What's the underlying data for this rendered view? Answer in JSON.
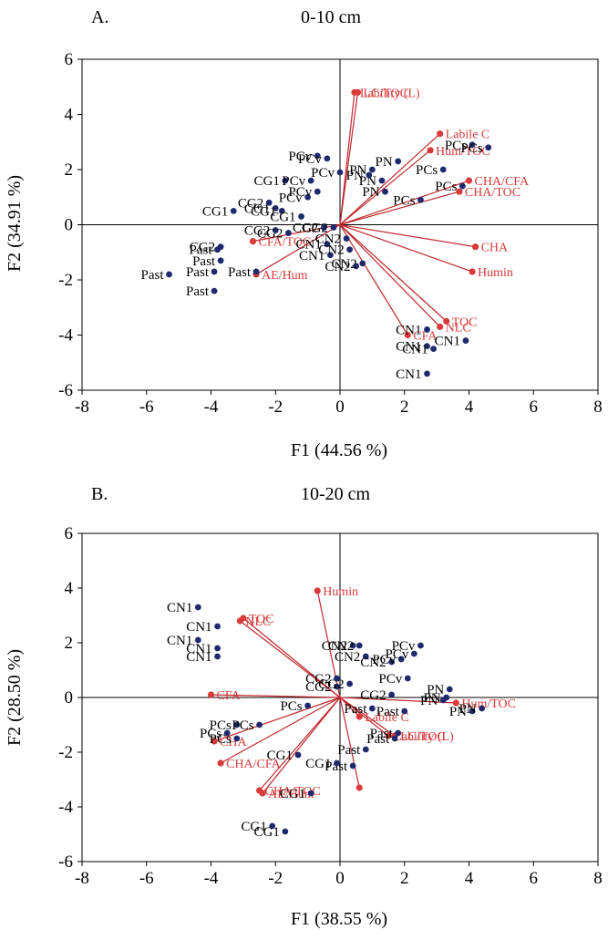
{
  "chart_data": [
    {
      "type": "scatter",
      "panel_label": "A.",
      "title": "0-10 cm",
      "xlabel": "F1 (44.56 %)",
      "ylabel": "F2 (34.91 %)",
      "xlim": [
        -8,
        8
      ],
      "ylim": [
        -6,
        6
      ],
      "xticks": [
        "-8",
        "-6",
        "-4",
        "-2",
        "0",
        "2",
        "4",
        "6",
        "8"
      ],
      "yticks": [
        "-6",
        "-4",
        "-2",
        "0",
        "2",
        "4",
        "6"
      ],
      "grid": false,
      "colors": {
        "observations": "#1f2a6e",
        "variables": "#d93a3a",
        "loading_lines": "#c0282d"
      },
      "observations": [
        {
          "label": "Past",
          "x": -5.3,
          "y": -1.8
        },
        {
          "label": "Past",
          "x": -3.8,
          "y": -0.9
        },
        {
          "label": "Past",
          "x": -3.7,
          "y": -1.3
        },
        {
          "label": "Past",
          "x": -3.9,
          "y": -1.7
        },
        {
          "label": "Past",
          "x": -3.9,
          "y": -2.4
        },
        {
          "label": "Past",
          "x": -2.6,
          "y": -1.7
        },
        {
          "label": "CG2",
          "x": -3.7,
          "y": -0.8
        },
        {
          "label": "CG1",
          "x": -3.3,
          "y": 0.5
        },
        {
          "label": "CG2",
          "x": -2.2,
          "y": 0.8
        },
        {
          "label": "CG1",
          "x": -2.0,
          "y": 0.6
        },
        {
          "label": "CG1",
          "x": -1.8,
          "y": 0.5
        },
        {
          "label": "CG2",
          "x": -2.0,
          "y": -0.2
        },
        {
          "label": "CG2",
          "x": -1.6,
          "y": -0.3
        },
        {
          "label": "CG1",
          "x": -1.7,
          "y": 1.6
        },
        {
          "label": "CG1",
          "x": -1.2,
          "y": 0.3
        },
        {
          "label": "PCv",
          "x": -0.7,
          "y": 2.5
        },
        {
          "label": "PCv",
          "x": -0.4,
          "y": 2.4
        },
        {
          "label": "PCv",
          "x": -0.9,
          "y": 1.6
        },
        {
          "label": "PCv",
          "x": -1.0,
          "y": 1.0
        },
        {
          "label": "PCv",
          "x": -0.7,
          "y": 1.2
        },
        {
          "label": "PCv",
          "x": 0.0,
          "y": 1.9
        },
        {
          "label": "CG2",
          "x": -0.5,
          "y": -0.1
        },
        {
          "label": "CG2",
          "x": -0.2,
          "y": -0.1
        },
        {
          "label": "CN1",
          "x": -0.4,
          "y": -0.7
        },
        {
          "label": "CN1",
          "x": -0.3,
          "y": -1.1
        },
        {
          "label": "CN2",
          "x": 0.2,
          "y": -0.5
        },
        {
          "label": "CN2",
          "x": 0.3,
          "y": -0.9
        },
        {
          "label": "CN2",
          "x": 0.5,
          "y": -1.5
        },
        {
          "label": "CN2",
          "x": 0.7,
          "y": -1.4
        },
        {
          "label": "PN",
          "x": 1.0,
          "y": 2.0
        },
        {
          "label": "PN",
          "x": 1.8,
          "y": 2.3
        },
        {
          "label": "PN",
          "x": 1.3,
          "y": 1.6
        },
        {
          "label": "PN",
          "x": 1.4,
          "y": 1.2
        },
        {
          "label": "PN",
          "x": 0.9,
          "y": 1.8
        },
        {
          "label": "PCs",
          "x": 3.2,
          "y": 2.0
        },
        {
          "label": "PCs",
          "x": 2.5,
          "y": 0.9
        },
        {
          "label": "PCs",
          "x": 3.8,
          "y": 1.4
        },
        {
          "label": "PCs",
          "x": 4.1,
          "y": 2.9
        },
        {
          "label": "PCs",
          "x": 4.6,
          "y": 2.8
        },
        {
          "label": "CN1",
          "x": 2.7,
          "y": -3.8
        },
        {
          "label": "CN1",
          "x": 2.7,
          "y": -4.4
        },
        {
          "label": "CN1",
          "x": 2.9,
          "y": -4.5
        },
        {
          "label": "CN1",
          "x": 3.9,
          "y": -4.2
        },
        {
          "label": "CN1",
          "x": 2.7,
          "y": -5.4
        }
      ],
      "variables": [
        {
          "label": "LC/TOC",
          "x": 0.55,
          "y": 4.8
        },
        {
          "label": "Lability (L)",
          "x": 0.45,
          "y": 4.8
        },
        {
          "label": "Labile C",
          "x": 3.1,
          "y": 3.3
        },
        {
          "label": "Hum/TOC",
          "x": 2.8,
          "y": 2.7
        },
        {
          "label": "CHA/CFA",
          "x": 4.0,
          "y": 1.6
        },
        {
          "label": "CHA/TOC",
          "x": 3.7,
          "y": 1.2
        },
        {
          "label": "CHA",
          "x": 4.2,
          "y": -0.8
        },
        {
          "label": "Humin",
          "x": 4.1,
          "y": -1.7
        },
        {
          "label": "TOC",
          "x": 3.3,
          "y": -3.5
        },
        {
          "label": "NLC",
          "x": 3.1,
          "y": -3.7
        },
        {
          "label": "CFA",
          "x": 2.1,
          "y": -4.0
        },
        {
          "label": "CFA/TOC",
          "x": -2.7,
          "y": -0.6
        },
        {
          "label": "AE/Hum",
          "x": -2.6,
          "y": -1.8
        }
      ]
    },
    {
      "type": "scatter",
      "panel_label": "B.",
      "title": "10-20 cm",
      "xlabel": "F1 (38.55 %)",
      "ylabel": "F2 (28.50 %)",
      "xlim": [
        -8,
        8
      ],
      "ylim": [
        -6,
        6
      ],
      "xticks": [
        "-8",
        "-6",
        "-4",
        "-2",
        "0",
        "2",
        "4",
        "6",
        "8"
      ],
      "yticks": [
        "-6",
        "-4",
        "-2",
        "0",
        "2",
        "4",
        "6"
      ],
      "grid": false,
      "colors": {
        "observations": "#1f2a6e",
        "variables": "#d93a3a",
        "loading_lines": "#c0282d"
      },
      "observations": [
        {
          "label": "CN1",
          "x": -4.4,
          "y": 3.3
        },
        {
          "label": "CN1",
          "x": -3.8,
          "y": 2.6
        },
        {
          "label": "CN1",
          "x": -4.4,
          "y": 2.1
        },
        {
          "label": "CN1",
          "x": -3.8,
          "y": 1.5
        },
        {
          "label": "CN1",
          "x": -3.8,
          "y": 1.8
        },
        {
          "label": "CN2",
          "x": 0.4,
          "y": 1.9
        },
        {
          "label": "CN2",
          "x": 0.6,
          "y": 1.9
        },
        {
          "label": "CN2",
          "x": 0.8,
          "y": 1.5
        },
        {
          "label": "CN2",
          "x": 1.6,
          "y": 1.3
        },
        {
          "label": "PCv",
          "x": 1.9,
          "y": 1.4
        },
        {
          "label": "PCv",
          "x": 2.3,
          "y": 1.6
        },
        {
          "label": "PCv",
          "x": 2.5,
          "y": 1.9
        },
        {
          "label": "PCv",
          "x": 2.1,
          "y": 0.7
        },
        {
          "label": "CG2",
          "x": -0.1,
          "y": 0.7
        },
        {
          "label": "CG2",
          "x": -0.1,
          "y": 0.4
        },
        {
          "label": "CG2",
          "x": 0.3,
          "y": 0.5
        },
        {
          "label": "CG2",
          "x": 1.6,
          "y": 0.1
        },
        {
          "label": "PN",
          "x": 3.4,
          "y": 0.3
        },
        {
          "label": "PN",
          "x": 3.2,
          "y": -0.1
        },
        {
          "label": "PN",
          "x": 4.1,
          "y": -0.5
        },
        {
          "label": "PN",
          "x": 4.4,
          "y": -0.4
        },
        {
          "label": "PN",
          "x": 3.3,
          "y": 0.0
        },
        {
          "label": "PCs",
          "x": -3.2,
          "y": -1.0
        },
        {
          "label": "PCs",
          "x": -2.5,
          "y": -1.0
        },
        {
          "label": "PCs",
          "x": -3.2,
          "y": -1.5
        },
        {
          "label": "PCs",
          "x": -3.5,
          "y": -1.3
        },
        {
          "label": "PCs",
          "x": -1.0,
          "y": -0.3
        },
        {
          "label": "Past",
          "x": 1.0,
          "y": -0.4
        },
        {
          "label": "Past",
          "x": 2.0,
          "y": -0.5
        },
        {
          "label": "Past",
          "x": 1.8,
          "y": -1.3
        },
        {
          "label": "Past",
          "x": 0.8,
          "y": -1.9
        },
        {
          "label": "Past",
          "x": 0.4,
          "y": -2.5
        },
        {
          "label": "Past",
          "x": 1.7,
          "y": -1.5
        },
        {
          "label": "CG1",
          "x": -1.3,
          "y": -2.1
        },
        {
          "label": "CG1",
          "x": -0.9,
          "y": -3.5
        },
        {
          "label": "CG1",
          "x": -2.1,
          "y": -4.7
        },
        {
          "label": "CG1",
          "x": -1.7,
          "y": -4.9
        },
        {
          "label": "CG1",
          "x": -0.1,
          "y": -2.4
        }
      ],
      "variables": [
        {
          "label": "Humin",
          "x": -0.7,
          "y": 3.9
        },
        {
          "label": "TOC",
          "x": -3.0,
          "y": 2.9
        },
        {
          "label": "NLC",
          "x": -3.1,
          "y": 2.8
        },
        {
          "label": "CFA",
          "x": -4.0,
          "y": 0.1
        },
        {
          "label": "CHA",
          "x": -3.9,
          "y": -1.6
        },
        {
          "label": "CHA/CFA",
          "x": -3.7,
          "y": -2.4
        },
        {
          "label": "CHA/TOC",
          "x": -2.5,
          "y": -3.4
        },
        {
          "label": "AE/Hum",
          "x": -2.4,
          "y": -3.5
        },
        {
          "label": "Hum/TOC",
          "x": 3.6,
          "y": -0.2
        },
        {
          "label": "Labile C",
          "x": 0.6,
          "y": -0.7
        },
        {
          "label": "Lability (L)",
          "x": 1.5,
          "y": -1.4
        },
        {
          "label": "LC/TOC",
          "x": 1.7,
          "y": -1.4
        },
        {
          "label": "",
          "x": 0.6,
          "y": -3.3
        }
      ]
    }
  ]
}
